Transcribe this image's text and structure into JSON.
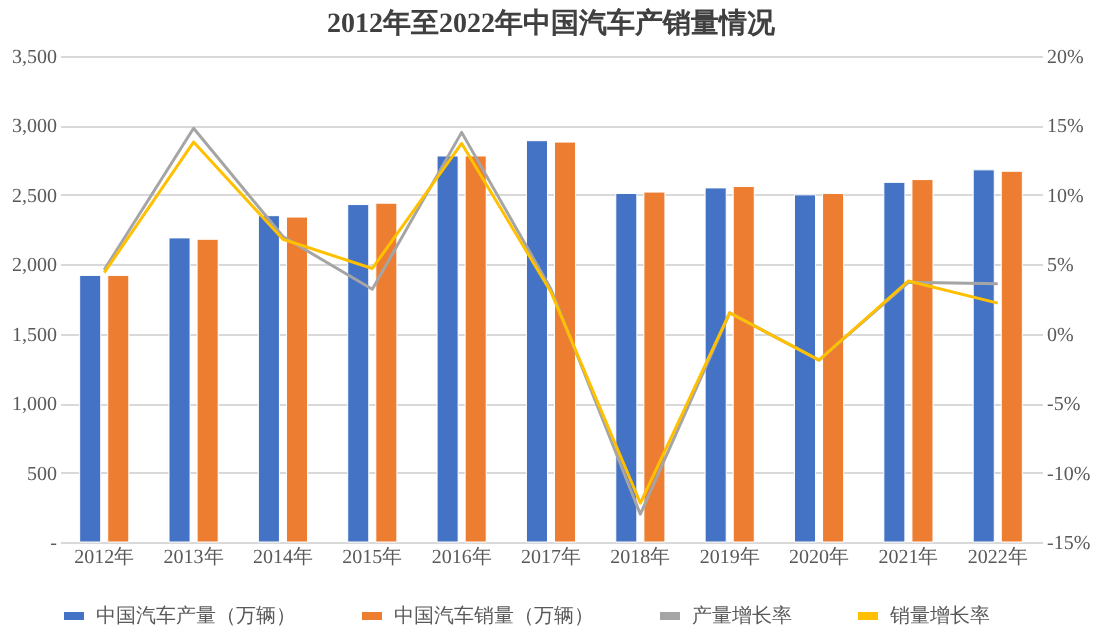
{
  "chart_data": {
    "type": "bar",
    "title": "2012年至2022年中国汽车产销量情况",
    "categories": [
      "2012年",
      "2013年",
      "2014年",
      "2015年",
      "2016年",
      "2017年",
      "2018年",
      "2019年",
      "2020年",
      "2021年",
      "2022年"
    ],
    "series": [
      {
        "name": "中国汽车产量（万辆）",
        "color": "#4472c4",
        "values": [
          1920,
          2190,
          2350,
          2430,
          2780,
          2890,
          2510,
          2550,
          2500,
          2590,
          2680
        ]
      },
      {
        "name": "中国汽车销量（万辆）",
        "color": "#ed7d31",
        "values": [
          1920,
          2180,
          2340,
          2440,
          2780,
          2880,
          2520,
          2560,
          2510,
          2610,
          2670
        ]
      },
      {
        "name": "产量增长率",
        "color": "#a5a5a5",
        "type": "line",
        "axis": "y2",
        "values": [
          4.6,
          14.8,
          7.0,
          3.2,
          14.5,
          3.2,
          -13.0,
          1.5,
          -1.9,
          3.7,
          3.6
        ]
      },
      {
        "name": "销量增长率",
        "color": "#ffc000",
        "type": "line",
        "axis": "y2",
        "values": [
          4.4,
          13.8,
          6.8,
          4.7,
          13.7,
          3.0,
          -12.2,
          1.5,
          -1.9,
          3.8,
          2.2
        ]
      }
    ],
    "ylim": [
      0,
      3500
    ],
    "yticks": [
      {
        "value": 0,
        "label": "-"
      },
      500,
      {
        "value": 1000,
        "label": "1,000"
      },
      {
        "value": 1500,
        "label": "1,500"
      },
      {
        "value": 2000,
        "label": "2,000"
      },
      {
        "value": 2500,
        "label": "2,500"
      },
      {
        "value": 3000,
        "label": "3,000"
      },
      {
        "value": 3500,
        "label": "3,500"
      }
    ],
    "y2lim": [
      -15,
      20
    ],
    "y2ticks": [
      {
        "value": -15,
        "label": "-15%"
      },
      {
        "value": -10,
        "label": "-10%"
      },
      {
        "value": -5,
        "label": "-5%"
      },
      {
        "value": 0,
        "label": "0%"
      },
      {
        "value": 5,
        "label": "5%"
      },
      {
        "value": 10,
        "label": "10%"
      },
      {
        "value": 15,
        "label": "15%"
      },
      {
        "value": 20,
        "label": "20%"
      }
    ],
    "grid": "y",
    "legend": "bottom",
    "marker": "none",
    "line_style": "solid"
  }
}
